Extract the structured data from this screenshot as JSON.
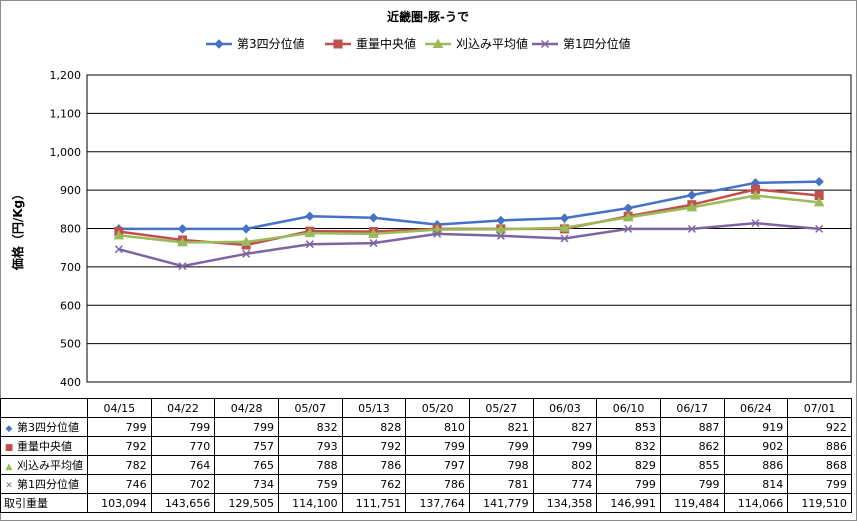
{
  "chart_data": {
    "type": "line",
    "title": "近畿圏-豚-うで",
    "ylabel": "価格（円/Kg）",
    "ylim": [
      400,
      1200
    ],
    "ytick_step": 100,
    "yticks": [
      "400",
      "500",
      "600",
      "700",
      "800",
      "900",
      "1,000",
      "1,100",
      "1,200"
    ],
    "grid": true,
    "legend_position": "top",
    "categories": [
      "04/15",
      "04/22",
      "04/28",
      "05/07",
      "05/13",
      "05/20",
      "05/27",
      "06/03",
      "06/10",
      "06/17",
      "06/24",
      "07/01"
    ],
    "series": [
      {
        "name": "第3四分位値",
        "color": "#4572C4",
        "marker": "diamond",
        "values": [
          799,
          799,
          799,
          832,
          828,
          810,
          821,
          827,
          853,
          887,
          919,
          922
        ],
        "labels": [
          "799",
          "799",
          "799",
          "832",
          "828",
          "810",
          "821",
          "827",
          "853",
          "887",
          "919",
          "922"
        ]
      },
      {
        "name": "重量中央値",
        "color": "#C0504D",
        "marker": "square",
        "values": [
          792,
          770,
          757,
          793,
          792,
          799,
          799,
          799,
          832,
          862,
          902,
          886
        ],
        "labels": [
          "792",
          "770",
          "757",
          "793",
          "792",
          "799",
          "799",
          "799",
          "832",
          "862",
          "902",
          "886"
        ]
      },
      {
        "name": "刈込み平均値",
        "color": "#9BBB59",
        "marker": "triangle",
        "values": [
          782,
          764,
          765,
          788,
          786,
          797,
          798,
          802,
          829,
          855,
          886,
          868
        ],
        "labels": [
          "782",
          "764",
          "765",
          "788",
          "786",
          "797",
          "798",
          "802",
          "829",
          "855",
          "886",
          "868"
        ]
      },
      {
        "name": "第1四分位値",
        "color": "#8064A2",
        "marker": "x",
        "values": [
          746,
          702,
          734,
          759,
          762,
          786,
          781,
          774,
          799,
          799,
          814,
          799
        ],
        "labels": [
          "746",
          "702",
          "734",
          "759",
          "762",
          "786",
          "781",
          "774",
          "799",
          "799",
          "814",
          "799"
        ]
      }
    ],
    "table_extra_row": {
      "name": "取引重量",
      "labels": [
        "103,094",
        "143,656",
        "129,505",
        "114,100",
        "111,751",
        "137,764",
        "141,779",
        "134,358",
        "146,991",
        "119,484",
        "114,066",
        "119,510"
      ]
    },
    "marker_glyphs": {
      "diamond": "◆",
      "square": "■",
      "triangle": "▲",
      "x": "✕"
    }
  }
}
